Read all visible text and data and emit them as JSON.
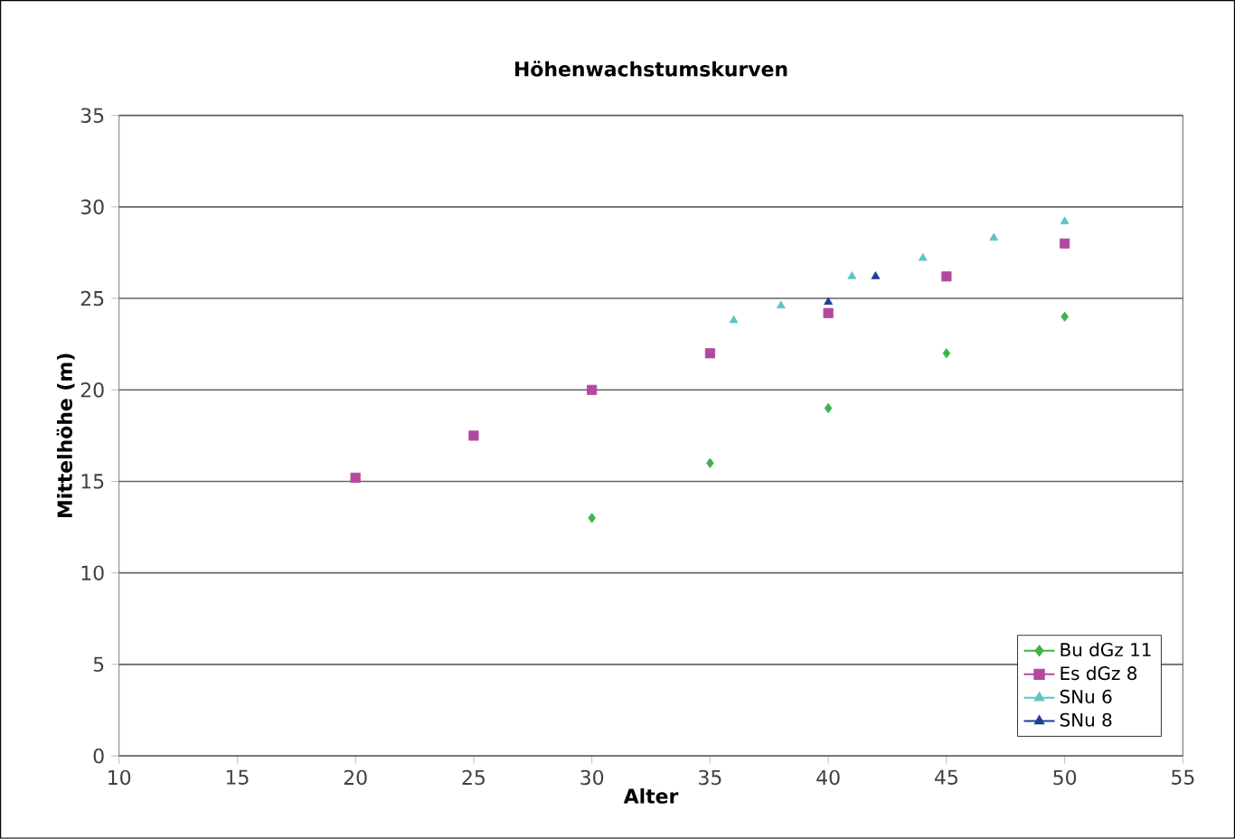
{
  "chart_data": {
    "type": "scatter",
    "title": "Höhenwachstumskurven",
    "xlabel": "Alter",
    "ylabel": "Mittelhöhe (m)",
    "xlim": [
      10,
      55
    ],
    "xticks": [
      10,
      15,
      20,
      25,
      30,
      35,
      40,
      45,
      50,
      55
    ],
    "ylim": [
      0,
      35
    ],
    "yticks": [
      0,
      5,
      10,
      15,
      20,
      25,
      30,
      35
    ],
    "grid": "y",
    "legend": "bottom right",
    "series": [
      {
        "name": "Bu dGz 11",
        "color": "#3cb44b",
        "marker": "diamond",
        "x": [
          30,
          35,
          40,
          45,
          50
        ],
        "values": [
          13,
          16,
          19,
          22,
          24
        ]
      },
      {
        "name": "Es dGz 8",
        "color": "#b5489e",
        "marker": "square",
        "x": [
          20,
          25,
          30,
          35,
          40,
          45,
          50
        ],
        "values": [
          15.2,
          17.5,
          20,
          22,
          24.2,
          26.2,
          28
        ]
      },
      {
        "name": "SNu 6",
        "color": "#5ec4c4",
        "marker": "triangle",
        "x": [
          36,
          38,
          41,
          44,
          47,
          50
        ],
        "values": [
          23.8,
          24.6,
          26.2,
          27.2,
          28.3,
          29.2
        ]
      },
      {
        "name": "SNu 8",
        "color": "#1f3f9a",
        "marker": "triangle",
        "x": [
          40,
          42
        ],
        "values": [
          24.8,
          26.2
        ]
      }
    ]
  }
}
